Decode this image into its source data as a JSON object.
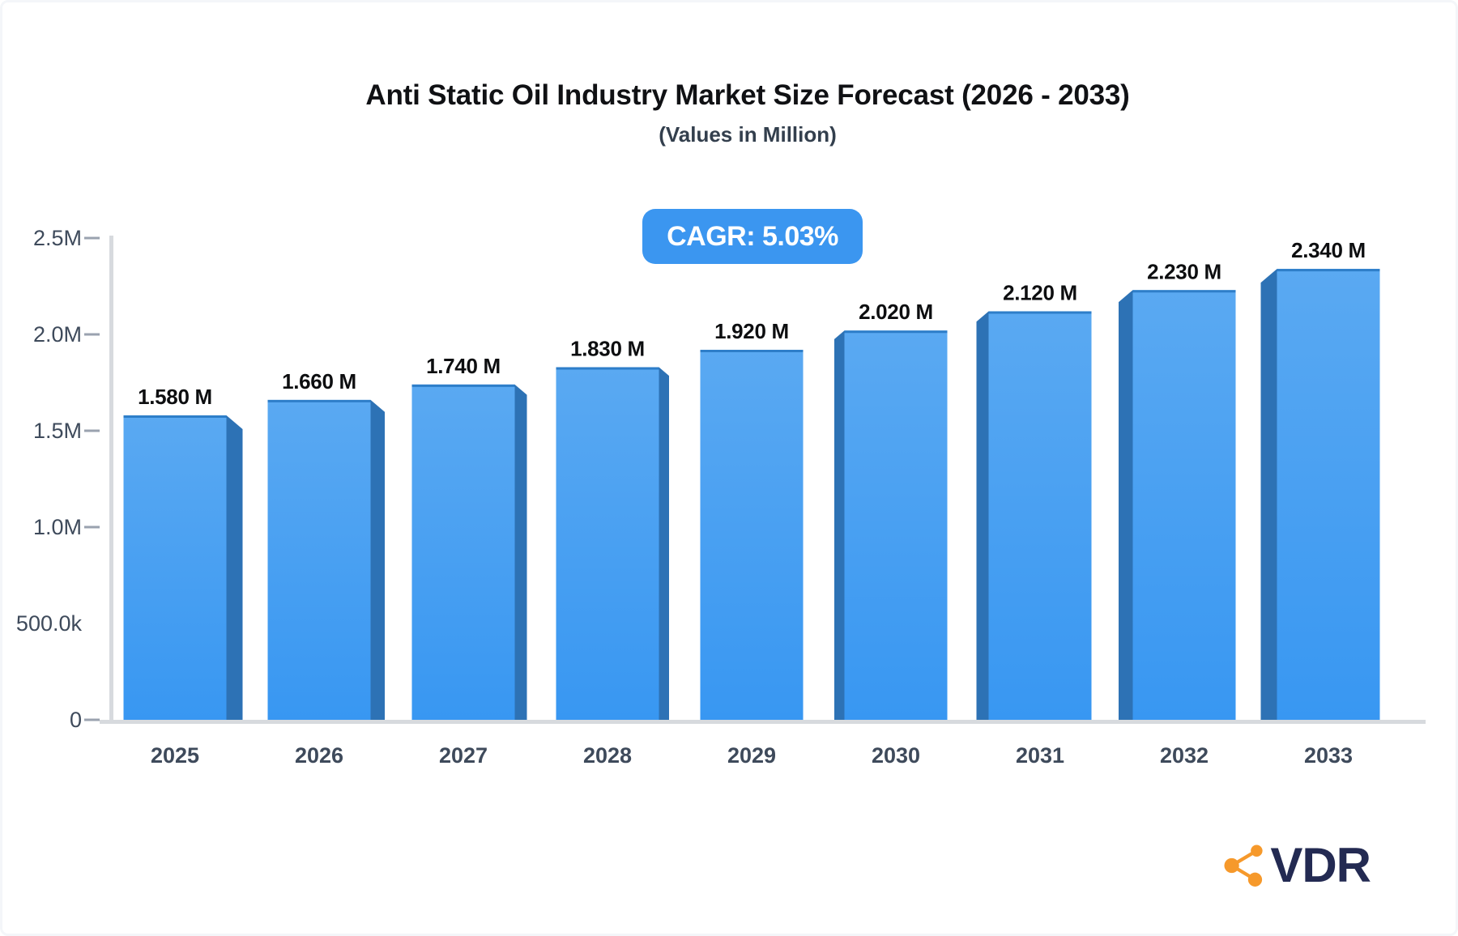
{
  "chart_data": {
    "type": "bar",
    "title": "Anti Static Oil Industry Market Size Forecast (2026 - 2033)",
    "subtitle": "(Values in Million)",
    "annotation": "CAGR: 5.03%",
    "categories": [
      "2025",
      "2026",
      "2027",
      "2028",
      "2029",
      "2030",
      "2031",
      "2032",
      "2033"
    ],
    "values": [
      1.58,
      1.66,
      1.74,
      1.83,
      1.92,
      2.02,
      2.12,
      2.23,
      2.34
    ],
    "value_labels": [
      "1.580 M",
      "1.660 M",
      "1.740 M",
      "1.830 M",
      "1.920 M",
      "2.020 M",
      "2.120 M",
      "2.230 M",
      "2.340 M"
    ],
    "unit": "M",
    "ylim": [
      0,
      2.5
    ],
    "y_ticks": [
      {
        "label": "0",
        "value": 0,
        "tick": true
      },
      {
        "label": "500.0k",
        "value": 0.5,
        "tick": false
      },
      {
        "label": "1.0M",
        "value": 1.0,
        "tick": true
      },
      {
        "label": "1.5M",
        "value": 1.5,
        "tick": true
      },
      {
        "label": "2.0M",
        "value": 2.0,
        "tick": true
      },
      {
        "label": "2.5M",
        "value": 2.5,
        "tick": true
      }
    ],
    "grid": false,
    "legend": "none",
    "bar_style": "3d-perspective-from-center",
    "colors": {
      "bar_top": "#5aa9f2",
      "bar_bottom": "#3897f2",
      "bar_side": "#2d72b5",
      "bar_edge": "#2e7ec9",
      "axis": "#d7dade",
      "tick": "#9aa2af",
      "label": "#0d0e10",
      "axis_label": "#3e4a5b",
      "badge_bg": "#3b96f0",
      "badge_text": "#ffffff"
    }
  },
  "logo": {
    "text": "VDR",
    "icon": "share-network-icon",
    "icon_color": "#f6992b",
    "text_color": "#232a52"
  }
}
